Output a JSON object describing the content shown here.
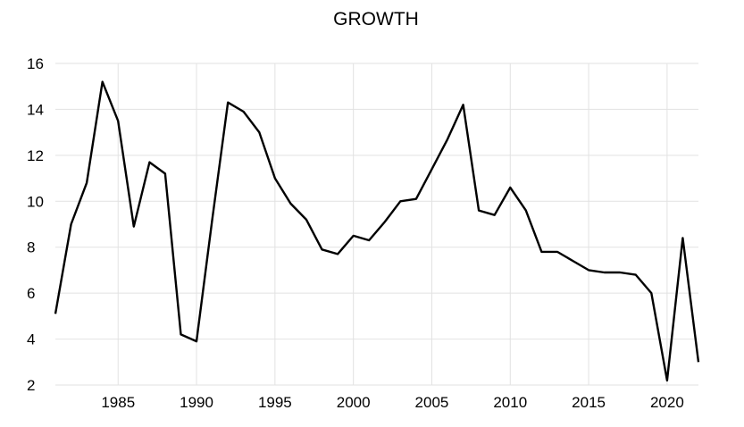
{
  "chart_data": {
    "type": "line",
    "title": "GROWTH",
    "xlabel": "",
    "ylabel": "",
    "xlim": [
      1981,
      2022
    ],
    "ylim": [
      2,
      16
    ],
    "grid": true,
    "legend": "none",
    "x_ticks": [
      "1985",
      "1990",
      "1995",
      "2000",
      "2005",
      "2010",
      "2015",
      "2020"
    ],
    "y_ticks": [
      "2",
      "4",
      "6",
      "8",
      "10",
      "12",
      "14",
      "16"
    ],
    "line_color": "#000000",
    "series": [
      {
        "x": [
          1981,
          1982,
          1983,
          1984,
          1985,
          1986,
          1987,
          1988,
          1989,
          1990,
          1991,
          1992,
          1993,
          1994,
          1995,
          1996,
          1997,
          1998,
          1999,
          2000,
          2001,
          2002,
          2003,
          2004,
          2005,
          2006,
          2007,
          2008,
          2009,
          2010,
          2011,
          2012,
          2013,
          2014,
          2015,
          2016,
          2017,
          2018,
          2019,
          2020,
          2021,
          2022
        ],
        "values": [
          5.1,
          9.0,
          10.8,
          15.2,
          13.5,
          8.9,
          11.7,
          11.2,
          4.2,
          3.9,
          9.2,
          14.3,
          13.9,
          13.0,
          11.0,
          9.9,
          9.2,
          7.9,
          7.7,
          8.5,
          8.3,
          9.1,
          10.0,
          10.1,
          11.4,
          12.7,
          14.2,
          9.6,
          9.4,
          10.6,
          9.6,
          7.8,
          7.8,
          7.4,
          7.0,
          6.9,
          6.9,
          6.8,
          6.0,
          2.2,
          8.4,
          3.0
        ]
      }
    ]
  }
}
